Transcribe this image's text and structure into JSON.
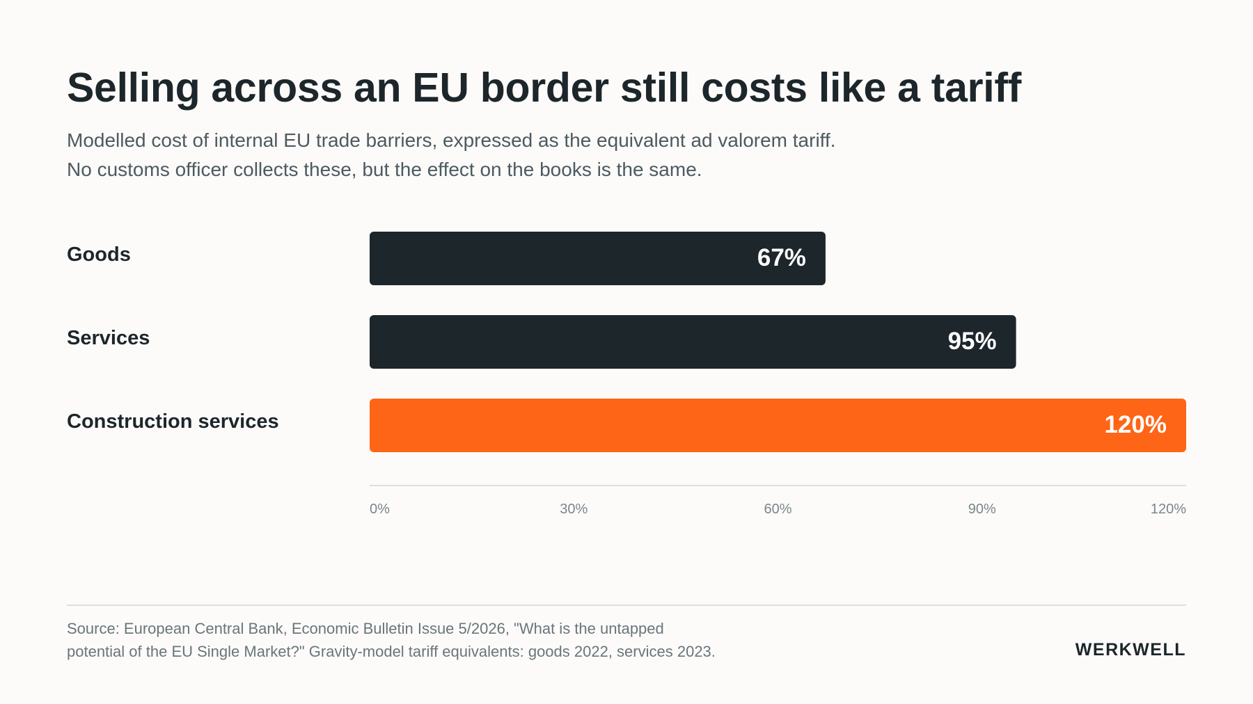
{
  "header": {
    "title": "Selling across an EU border still costs like a tariff",
    "subtitle_lines": [
      "Modelled cost of internal EU trade barriers, expressed as the equivalent ad valorem tariff.",
      "No customs officer collects these, but the effect on the books is the same."
    ]
  },
  "chart_data": {
    "type": "bar",
    "orientation": "horizontal",
    "categories": [
      "Goods",
      "Services",
      "Construction services"
    ],
    "values": [
      67,
      95,
      120
    ],
    "value_labels": [
      "67%",
      "95%",
      "120%"
    ],
    "bar_colors": [
      "#1c262b",
      "#1c262b",
      "#ff6516"
    ],
    "xlim": [
      0,
      120
    ],
    "xticks": [
      0,
      30,
      60,
      90,
      120
    ],
    "xtick_labels": [
      "0%",
      "30%",
      "60%",
      "90%",
      "120%"
    ],
    "grid": false,
    "legend": "none"
  },
  "footer": {
    "source_lines": [
      "Source: European Central Bank, Economic Bulletin Issue 5/2026, \"What is the untapped",
      "potential of the EU Single Market?\" Gravity-model tariff equivalents: goods 2022, services 2023."
    ],
    "brand": "WERKWELL"
  },
  "colors": {
    "background": "#fcfbf9",
    "text_dark": "#1c262b",
    "accent": "#ff6516",
    "muted": "#7b868c",
    "axis_line": "#dededc"
  }
}
